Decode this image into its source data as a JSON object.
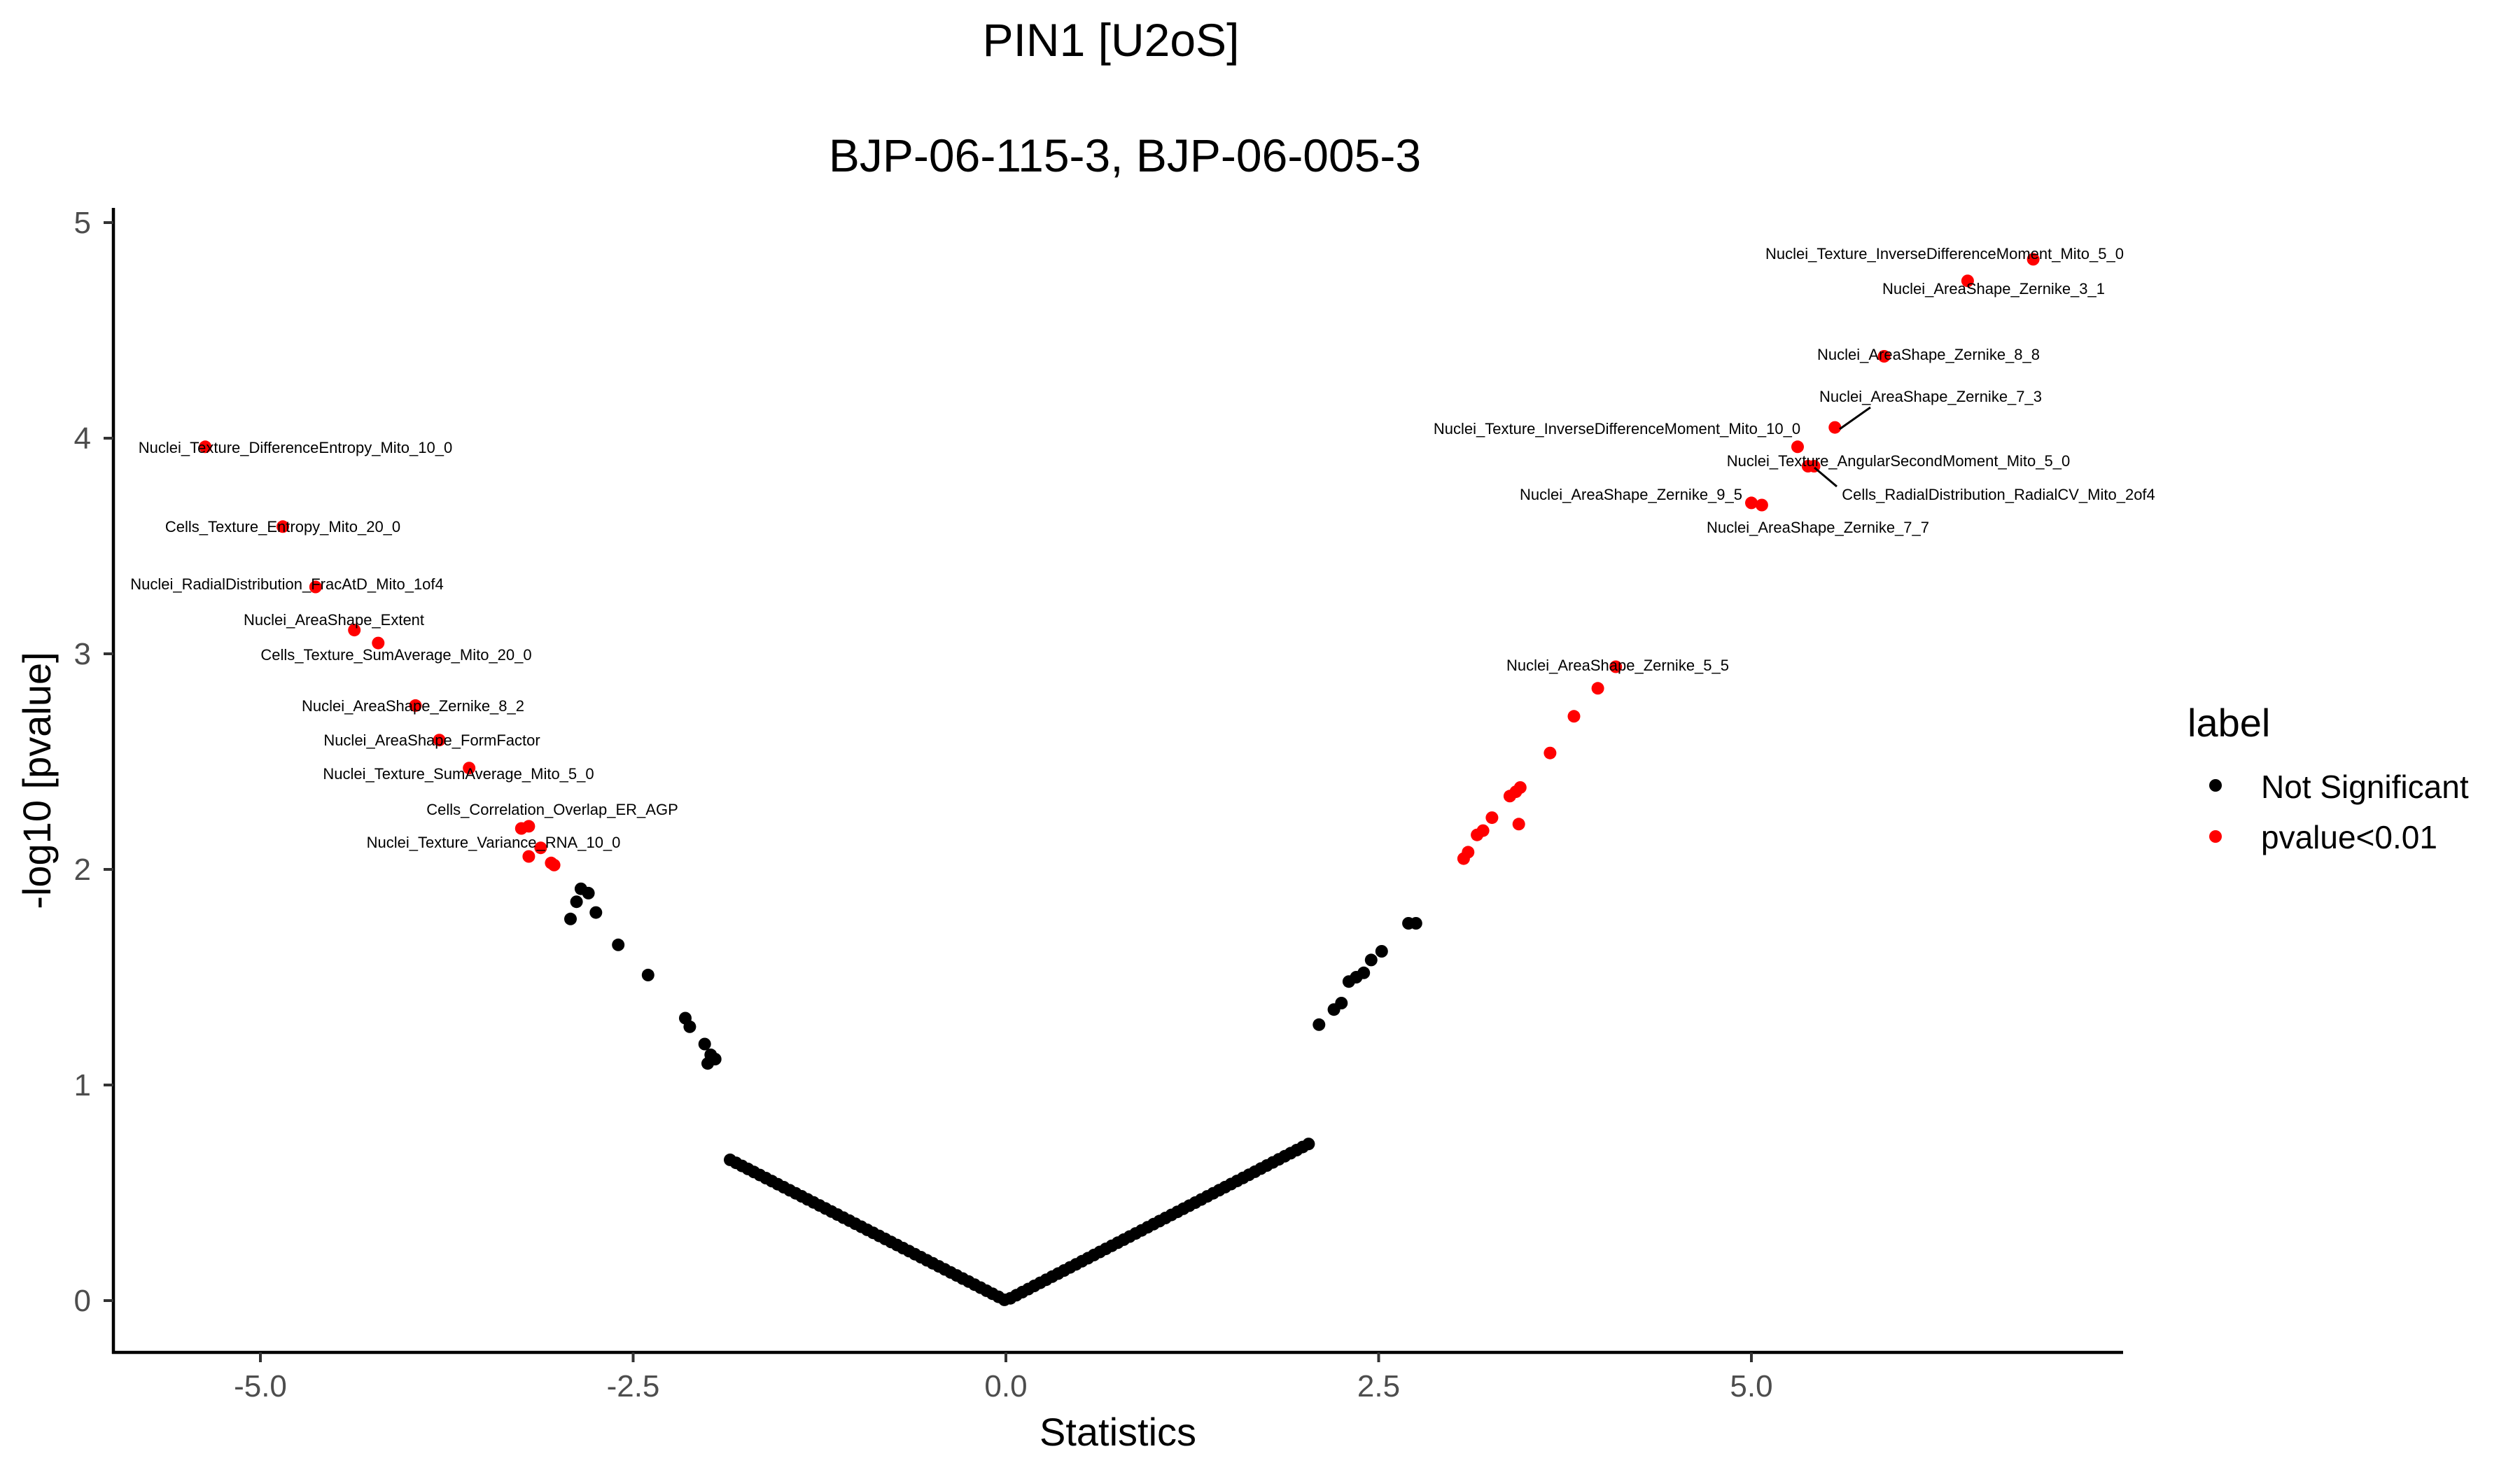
{
  "chart_data": {
    "type": "scatter",
    "title": "PIN1 [U2oS]",
    "subtitle": "BJP-06-115-3, BJP-06-005-3",
    "xlabel": "Statistics",
    "ylabel": "-log10 [pvalue]",
    "xlim": [
      -6.0,
      7.5
    ],
    "ylim": [
      -0.22,
      5.05
    ],
    "xticks": [
      -5.0,
      -2.5,
      0.0,
      2.5,
      5.0
    ],
    "xtick_labels": [
      "-5.0",
      "-2.5",
      "0.0",
      "2.5",
      "5.0"
    ],
    "yticks": [
      0,
      1,
      2,
      3,
      4,
      5
    ],
    "ytick_labels": [
      "0",
      "1",
      "2",
      "3",
      "4",
      "5"
    ],
    "legend": {
      "title": "label",
      "position": "right",
      "entries": [
        {
          "name": "Not Significant",
          "color": "#000000"
        },
        {
          "name": "pvalue<0.01",
          "color": "#ff0000"
        }
      ]
    },
    "curve": {
      "name": "Not Significant",
      "description": "dense band of non-significant features following y = 0.35 * |x|",
      "slope_left": 0.353,
      "slope_right": 0.358,
      "x_min": -1.85,
      "x_max": 2.05,
      "step": 0.04
    },
    "series": [
      {
        "name": "Not Significant",
        "color": "#000000",
        "points": [
          {
            "x": -2.92,
            "y": 1.77
          },
          {
            "x": -2.88,
            "y": 1.85
          },
          {
            "x": -2.85,
            "y": 1.91
          },
          {
            "x": -2.8,
            "y": 1.89
          },
          {
            "x": -2.75,
            "y": 1.8
          },
          {
            "x": -2.6,
            "y": 1.65
          },
          {
            "x": -2.4,
            "y": 1.51
          },
          {
            "x": -2.15,
            "y": 1.31
          },
          {
            "x": -2.12,
            "y": 1.27
          },
          {
            "x": -2.02,
            "y": 1.19
          },
          {
            "x": -2.0,
            "y": 1.1
          },
          {
            "x": -1.98,
            "y": 1.14
          },
          {
            "x": -1.95,
            "y": 1.12
          },
          {
            "x": 2.1,
            "y": 1.28
          },
          {
            "x": 2.2,
            "y": 1.35
          },
          {
            "x": 2.25,
            "y": 1.38
          },
          {
            "x": 2.3,
            "y": 1.48
          },
          {
            "x": 2.35,
            "y": 1.5
          },
          {
            "x": 2.4,
            "y": 1.52
          },
          {
            "x": 2.45,
            "y": 1.58
          },
          {
            "x": 2.52,
            "y": 1.62
          },
          {
            "x": 2.7,
            "y": 1.75
          },
          {
            "x": 2.75,
            "y": 1.75
          }
        ]
      },
      {
        "name": "pvalue<0.01",
        "color": "#ff0000",
        "points": [
          {
            "x": -5.37,
            "y": 3.96,
            "label": "Nuclei_Texture_DifferenceEntropy_Mito_10_0"
          },
          {
            "x": -4.85,
            "y": 3.59,
            "label": "Cells_Texture_Entropy_Mito_20_0"
          },
          {
            "x": -4.63,
            "y": 3.31,
            "label": "Nuclei_RadialDistribution_FracAtD_Mito_1of4"
          },
          {
            "x": -4.37,
            "y": 3.11,
            "label": "Nuclei_AreaShape_Extent"
          },
          {
            "x": -4.21,
            "y": 3.05,
            "label": "Cells_Texture_SumAverage_Mito_20_0"
          },
          {
            "x": -3.96,
            "y": 2.76,
            "label": "Nuclei_AreaShape_Zernike_8_2"
          },
          {
            "x": -3.8,
            "y": 2.6,
            "label": "Nuclei_AreaShape_FormFactor"
          },
          {
            "x": -3.6,
            "y": 2.47,
            "label": "Nuclei_Texture_SumAverage_Mito_5_0"
          },
          {
            "x": -3.25,
            "y": 2.19,
            "label": "Cells_Correlation_Overlap_ER_AGP"
          },
          {
            "x": -3.2,
            "y": 2.2
          },
          {
            "x": -3.12,
            "y": 2.1,
            "label": "Nuclei_Texture_Variance_RNA_10_0"
          },
          {
            "x": -3.2,
            "y": 2.06
          },
          {
            "x": -3.05,
            "y": 2.03
          },
          {
            "x": -3.03,
            "y": 2.02
          },
          {
            "x": 6.89,
            "y": 4.83,
            "label": "Nuclei_Texture_InverseDifferenceMoment_Mito_5_0"
          },
          {
            "x": 6.45,
            "y": 4.73,
            "label": "Nuclei_AreaShape_Zernike_3_1"
          },
          {
            "x": 5.89,
            "y": 4.38,
            "label": "Nuclei_AreaShape_Zernike_8_8"
          },
          {
            "x": 5.56,
            "y": 4.05,
            "label": "Nuclei_AreaShape_Zernike_7_3"
          },
          {
            "x": 5.31,
            "y": 3.96,
            "label": "Nuclei_Texture_InverseDifferenceMoment_Mito_10_0"
          },
          {
            "x": 5.38,
            "y": 3.87,
            "label": "Nuclei_Texture_AngularSecondMoment_Mito_5_0"
          },
          {
            "x": 5.0,
            "y": 3.7,
            "label": "Nuclei_AreaShape_Zernike_9_5"
          },
          {
            "x": 5.07,
            "y": 3.69,
            "label": "Nuclei_AreaShape_Zernike_7_7"
          },
          {
            "x": 5.42,
            "y": 3.87,
            "label": "Cells_RadialDistribution_RadialCV_Mito_2of4"
          },
          {
            "x": 4.09,
            "y": 2.94,
            "label": "Nuclei_AreaShape_Zernike_5_5"
          },
          {
            "x": 3.97,
            "y": 2.84
          },
          {
            "x": 3.81,
            "y": 2.71
          },
          {
            "x": 3.65,
            "y": 2.54
          },
          {
            "x": 3.45,
            "y": 2.38
          },
          {
            "x": 3.42,
            "y": 2.36
          },
          {
            "x": 3.38,
            "y": 2.34
          },
          {
            "x": 3.44,
            "y": 2.21
          },
          {
            "x": 3.26,
            "y": 2.24
          },
          {
            "x": 3.2,
            "y": 2.18
          },
          {
            "x": 3.16,
            "y": 2.16
          },
          {
            "x": 3.1,
            "y": 2.08
          },
          {
            "x": 3.07,
            "y": 2.05
          }
        ]
      }
    ]
  }
}
